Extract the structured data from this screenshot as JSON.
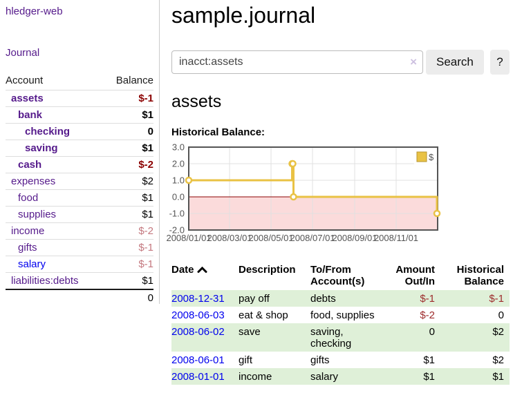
{
  "app": {
    "brand": "hledger-web",
    "nav_journal": "Journal"
  },
  "sidebar": {
    "header": {
      "account": "Account",
      "balance": "Balance"
    },
    "accounts": [
      {
        "name": "assets",
        "balance": "$-1"
      },
      {
        "name": "bank",
        "balance": "$1"
      },
      {
        "name": "checking",
        "balance": "0"
      },
      {
        "name": "saving",
        "balance": "$1"
      },
      {
        "name": "cash",
        "balance": "$-2"
      },
      {
        "name": "expenses",
        "balance": "$2"
      },
      {
        "name": "food",
        "balance": "$1"
      },
      {
        "name": "supplies",
        "balance": "$1"
      },
      {
        "name": "income",
        "balance": "$-2"
      },
      {
        "name": "gifts",
        "balance": "$-1"
      },
      {
        "name": "salary",
        "balance": "$-1"
      },
      {
        "name": "liabilities:debts",
        "balance": "$1"
      }
    ],
    "total": "0"
  },
  "main": {
    "title": "sample.journal",
    "search": {
      "value": "inacct:assets",
      "clear_icon": "×",
      "button_label": "Search",
      "help_label": "?"
    },
    "account_heading": "assets",
    "chart_label": "Historical Balance:",
    "register": {
      "headers": {
        "date": "Date",
        "description": "Description",
        "account": "To/From Account(s)",
        "amount": "Amount Out/In",
        "balance": "Historical Balance"
      },
      "rows": [
        {
          "date": "2008-12-31",
          "description": "pay off",
          "account": "debts",
          "amount": "$-1",
          "balance": "$-1"
        },
        {
          "date": "2008-06-03",
          "description": "eat & shop",
          "account": "food, supplies",
          "amount": "$-2",
          "balance": "0"
        },
        {
          "date": "2008-06-02",
          "description": "save",
          "account": "saving, checking",
          "amount": "0",
          "balance": "$2"
        },
        {
          "date": "2008-06-01",
          "description": "gift",
          "account": "gifts",
          "amount": "$1",
          "balance": "$2"
        },
        {
          "date": "2008-01-01",
          "description": "income",
          "account": "salary",
          "amount": "$1",
          "balance": "$1"
        }
      ]
    }
  },
  "chart_data": {
    "type": "line",
    "title": "Historical Balance",
    "step": true,
    "series": [
      {
        "name": "$",
        "points": [
          [
            "2008-01-01",
            1
          ],
          [
            "2008-06-01",
            2
          ],
          [
            "2008-06-02",
            2
          ],
          [
            "2008-06-03",
            0
          ],
          [
            "2008-12-31",
            -1
          ]
        ]
      }
    ],
    "x_range": [
      "2008-01-01",
      "2009-01-01"
    ],
    "x_ticks": [
      "2008/01/01",
      "2008/03/01",
      "2008/05/01",
      "2008/07/01",
      "2008/09/01",
      "2008/11/01"
    ],
    "y_ticks": [
      3.0,
      2.0,
      1.0,
      0.0,
      -1.0,
      -2.0
    ],
    "ylim": [
      -2,
      3
    ],
    "legend": {
      "label": "$",
      "position": "top-right"
    },
    "grid": true,
    "negative_region_shaded": true
  },
  "colors": {
    "purple_link": "#551A8B",
    "blue_link": "#0000EE",
    "negative_strong": "#8B0000",
    "negative_light": "#C4787F",
    "table_negative": "#9D2B2B",
    "stripe_green": "#DFF0D8",
    "chart_line": "#E9C244",
    "chart_line_border": "#B89530",
    "chart_negative_region": "#FBDBDB",
    "chart_zero_line": "#8B0000",
    "chart_grid": "#E0E0E0",
    "chart_border": "#545454",
    "chart_axis_text": "#545454"
  }
}
